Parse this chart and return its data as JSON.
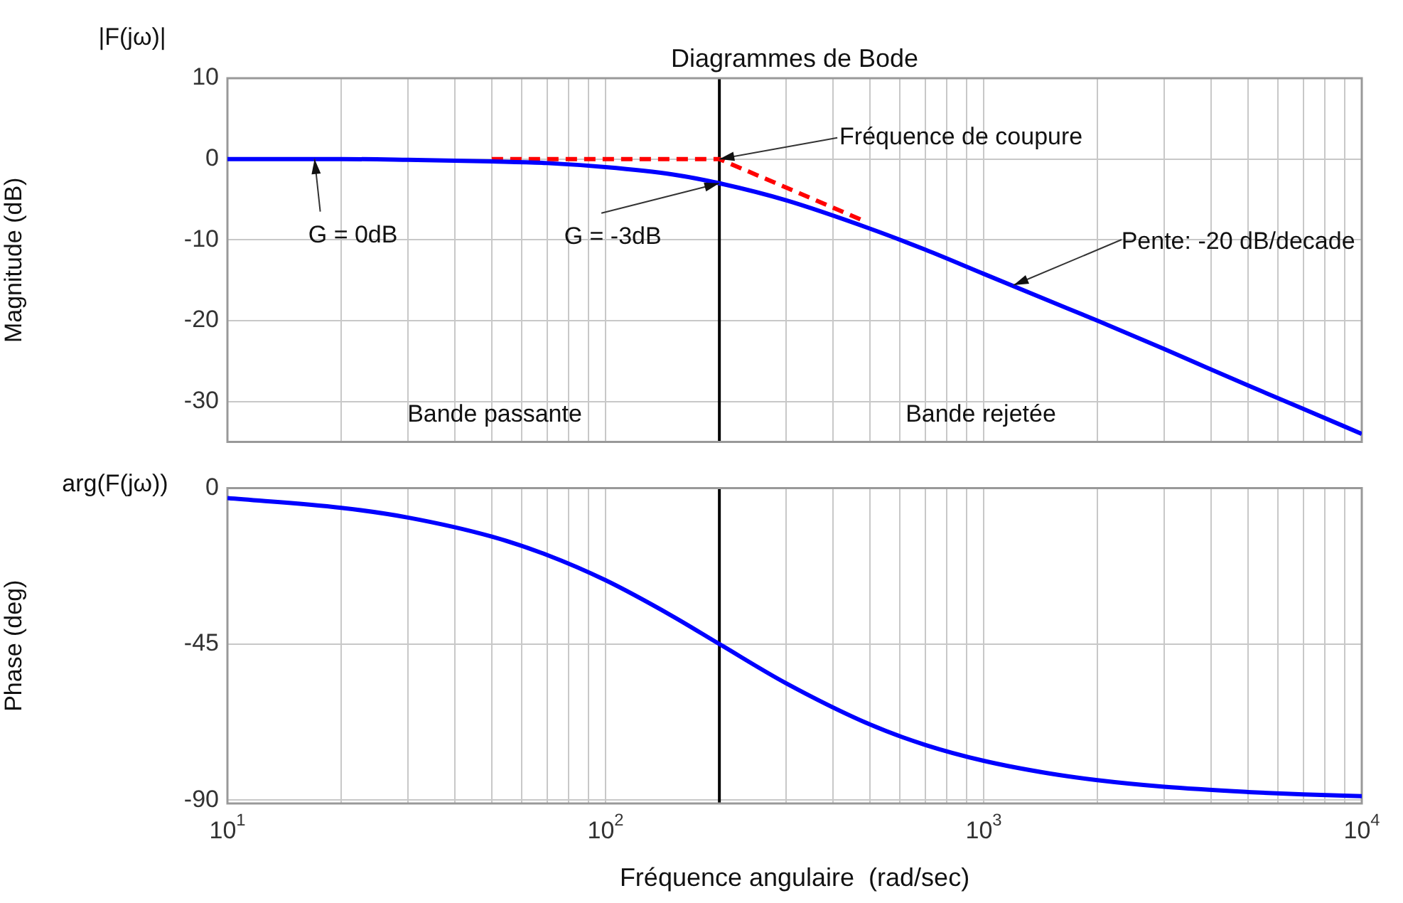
{
  "chart_data": [
    {
      "type": "line",
      "title": "Diagrammes de Bode",
      "ylabel": "Magnitude (dB)",
      "log": "x",
      "grid": true,
      "legend": false,
      "marker": "none",
      "tick_labels": "y",
      "xlim": [
        10,
        10000
      ],
      "xticks": [
        {
          "value": 10,
          "label": null
        },
        {
          "value": 20,
          "label": null
        },
        {
          "value": 30,
          "label": null
        },
        {
          "value": 40,
          "label": null
        },
        {
          "value": 50,
          "label": null
        },
        {
          "value": 60,
          "label": null
        },
        {
          "value": 70,
          "label": null
        },
        {
          "value": 80,
          "label": null
        },
        {
          "value": 90,
          "label": null
        },
        {
          "value": 100,
          "label": null
        },
        {
          "value": 200,
          "label": null
        },
        {
          "value": 300,
          "label": null
        },
        {
          "value": 400,
          "label": null
        },
        {
          "value": 500,
          "label": null
        },
        {
          "value": 600,
          "label": null
        },
        {
          "value": 700,
          "label": null
        },
        {
          "value": 800,
          "label": null
        },
        {
          "value": 900,
          "label": null
        },
        {
          "value": 1000,
          "label": null
        },
        {
          "value": 2000,
          "label": null
        },
        {
          "value": 3000,
          "label": null
        },
        {
          "value": 4000,
          "label": null
        },
        {
          "value": 5000,
          "label": null
        },
        {
          "value": 6000,
          "label": null
        },
        {
          "value": 7000,
          "label": null
        },
        {
          "value": 8000,
          "label": null
        },
        {
          "value": 9000,
          "label": null
        },
        {
          "value": 10000,
          "label": null
        }
      ],
      "ylim": [
        -35,
        10
      ],
      "yticks": [
        -30,
        -20,
        -10,
        0,
        10
      ],
      "x": [
        10,
        20,
        30,
        50,
        70,
        100,
        150,
        200,
        300,
        500,
        700,
        1000,
        1500,
        2000,
        3000,
        5000,
        7000,
        10000
      ],
      "series": [
        {
          "color": "#0000ff",
          "values": [
            0,
            0,
            -0.1,
            -0.3,
            -0.5,
            -1,
            -1.9,
            -3,
            -5.1,
            -8.6,
            -11.2,
            -14.2,
            -17.6,
            -20,
            -23.5,
            -28,
            -30.9,
            -34
          ]
        },
        {
          "color": "#ff0000",
          "line_style": "dashed",
          "x": [
            50,
            200,
            480
          ],
          "values": [
            0,
            0,
            -7.6
          ]
        }
      ],
      "ref_lines": [
        {
          "axis": "x",
          "value": 200,
          "color": "#000000"
        }
      ],
      "annotations": [
        "|F(jω)|",
        {
          "text": "G = 0dB",
          "x": 17,
          "y": 0
        },
        {
          "text": "Fréquence de coupure",
          "x": 200,
          "y": 0
        },
        {
          "text": "G = -3dB",
          "x": 200,
          "y": -3
        },
        {
          "text": "Pente: -20 dB/decade",
          "x": 1200,
          "y": -15.6
        },
        "Bande passante",
        "Bande rejetée"
      ]
    },
    {
      "type": "line",
      "xlabel": "Fréquence angulaire  (rad/sec)",
      "ylabel": "Phase (deg)",
      "log": "x",
      "grid": true,
      "legend": false,
      "marker": "none",
      "xlim": [
        10,
        10000
      ],
      "xticks": [
        {
          "value": 10,
          "label": "10$^{1}$"
        },
        {
          "value": 20,
          "label": null
        },
        {
          "value": 30,
          "label": null
        },
        {
          "value": 40,
          "label": null
        },
        {
          "value": 50,
          "label": null
        },
        {
          "value": 60,
          "label": null
        },
        {
          "value": 70,
          "label": null
        },
        {
          "value": 80,
          "label": null
        },
        {
          "value": 90,
          "label": null
        },
        {
          "value": 100,
          "label": "10$^{2}$"
        },
        {
          "value": 200,
          "label": null
        },
        {
          "value": 300,
          "label": null
        },
        {
          "value": 400,
          "label": null
        },
        {
          "value": 500,
          "label": null
        },
        {
          "value": 600,
          "label": null
        },
        {
          "value": 700,
          "label": null
        },
        {
          "value": 800,
          "label": null
        },
        {
          "value": 900,
          "label": null
        },
        {
          "value": 1000,
          "label": "10$^{3}$"
        },
        {
          "value": 2000,
          "label": null
        },
        {
          "value": 3000,
          "label": null
        },
        {
          "value": 4000,
          "label": null
        },
        {
          "value": 5000,
          "label": null
        },
        {
          "value": 6000,
          "label": null
        },
        {
          "value": 7000,
          "label": null
        },
        {
          "value": 8000,
          "label": null
        },
        {
          "value": 9000,
          "label": null
        },
        {
          "value": 10000,
          "label": "10$^{4}$"
        }
      ],
      "ylim": [
        -91,
        0
      ],
      "yticks": [
        -90,
        -45,
        0
      ],
      "x": [
        10,
        20,
        30,
        50,
        70,
        100,
        150,
        200,
        300,
        500,
        700,
        1000,
        1500,
        2000,
        3000,
        5000,
        7000,
        10000
      ],
      "series": [
        {
          "color": "#0000ff",
          "values": [
            -2.9,
            -5.7,
            -8.5,
            -14,
            -19.3,
            -26.6,
            -36.9,
            -45,
            -56.3,
            -68.2,
            -74.1,
            -78.7,
            -82.4,
            -84.3,
            -86.2,
            -87.7,
            -88.4,
            -88.9
          ]
        }
      ],
      "ref_lines": [
        {
          "axis": "x",
          "value": 200,
          "color": "#000000"
        }
      ],
      "annotations": [
        "arg(F(jω))"
      ]
    }
  ]
}
